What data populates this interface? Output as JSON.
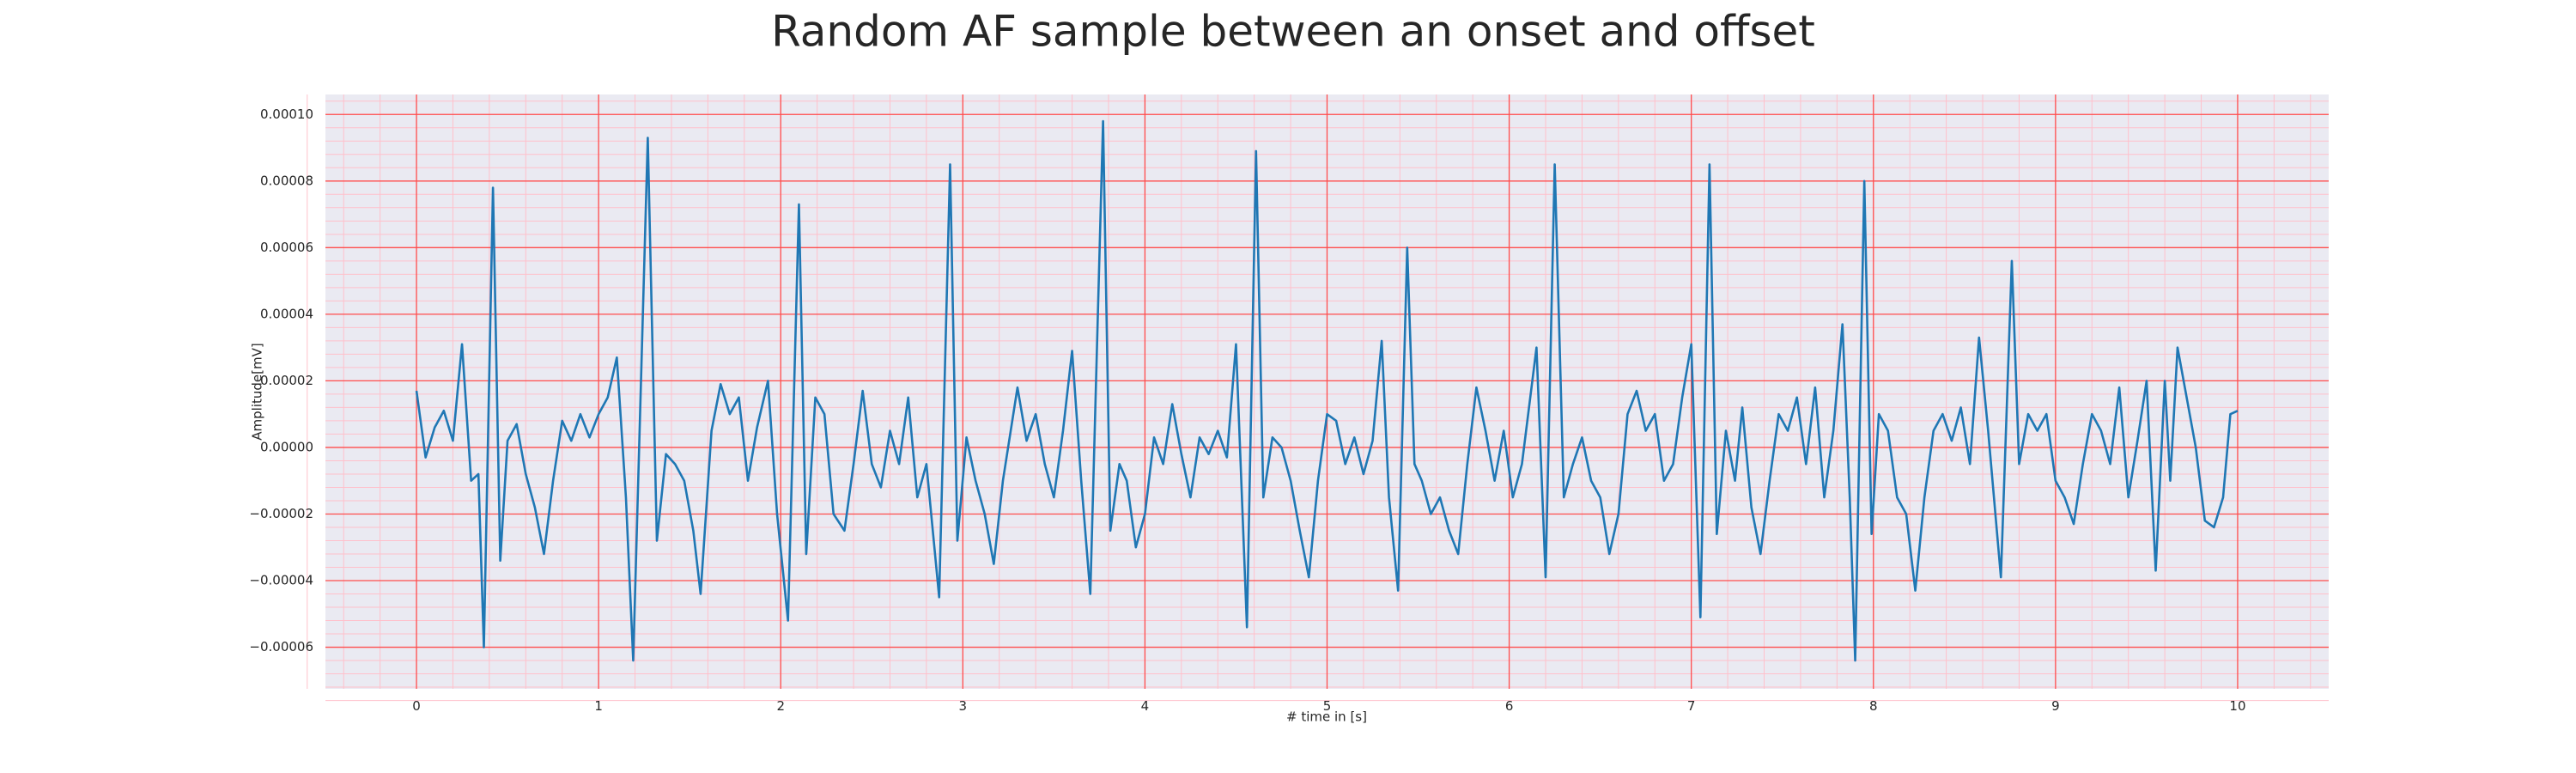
{
  "chart_data": {
    "type": "line",
    "title": "Random AF sample between an onset and offset",
    "xlabel": "# time in [s]",
    "ylabel": "Amplitude[mV]",
    "color": "#1f77b4",
    "grid": true,
    "xlim": [
      -0.5,
      10.5
    ],
    "ylim": [
      -7.25e-05,
      0.000106
    ],
    "xticks": [
      0,
      1,
      2,
      3,
      4,
      5,
      6,
      7,
      8,
      9,
      10
    ],
    "yticks": [
      {
        "value": -6e-05,
        "label": "−0.00006"
      },
      {
        "value": -4e-05,
        "label": "−0.00004"
      },
      {
        "value": -2e-05,
        "label": "−0.00002"
      },
      {
        "value": 0,
        "label": "0.00000"
      },
      {
        "value": 2e-05,
        "label": "0.00002"
      },
      {
        "value": 4e-05,
        "label": "0.00004"
      },
      {
        "value": 6e-05,
        "label": "0.00006"
      },
      {
        "value": 8e-05,
        "label": "0.00008"
      },
      {
        "value": 0.0001,
        "label": "0.00010"
      }
    ],
    "x": [
      0,
      0.05,
      0.1,
      0.15,
      0.2,
      0.25,
      0.3,
      0.34,
      0.37,
      0.42,
      0.46,
      0.5,
      0.55,
      0.6,
      0.65,
      0.7,
      0.75,
      0.8,
      0.85,
      0.9,
      0.95,
      1.0,
      1.05,
      1.1,
      1.15,
      1.19,
      1.27,
      1.32,
      1.37,
      1.42,
      1.47,
      1.52,
      1.56,
      1.62,
      1.67,
      1.72,
      1.77,
      1.82,
      1.87,
      1.93,
      1.98,
      2.04,
      2.1,
      2.14,
      2.19,
      2.24,
      2.29,
      2.35,
      2.4,
      2.45,
      2.5,
      2.55,
      2.6,
      2.65,
      2.7,
      2.75,
      2.8,
      2.87,
      2.93,
      2.97,
      3.02,
      3.07,
      3.12,
      3.17,
      3.22,
      3.3,
      3.35,
      3.4,
      3.45,
      3.5,
      3.55,
      3.6,
      3.65,
      3.7,
      3.77,
      3.81,
      3.86,
      3.9,
      3.95,
      4.0,
      4.05,
      4.1,
      4.15,
      4.2,
      4.25,
      4.3,
      4.35,
      4.4,
      4.45,
      4.5,
      4.56,
      4.61,
      4.65,
      4.7,
      4.75,
      4.8,
      4.85,
      4.9,
      4.95,
      5.0,
      5.05,
      5.1,
      5.15,
      5.2,
      5.25,
      5.3,
      5.34,
      5.39,
      5.44,
      5.48,
      5.52,
      5.57,
      5.62,
      5.67,
      5.72,
      5.77,
      5.82,
      5.87,
      5.92,
      5.97,
      6.02,
      6.07,
      6.15,
      6.2,
      6.25,
      6.3,
      6.35,
      6.4,
      6.45,
      6.5,
      6.55,
      6.6,
      6.65,
      6.7,
      6.75,
      6.8,
      6.85,
      6.9,
      6.95,
      7.0,
      7.05,
      7.1,
      7.14,
      7.19,
      7.24,
      7.28,
      7.33,
      7.38,
      7.43,
      7.48,
      7.53,
      7.58,
      7.63,
      7.68,
      7.73,
      7.78,
      7.83,
      7.87,
      7.9,
      7.95,
      7.99,
      8.03,
      8.08,
      8.13,
      8.18,
      8.23,
      8.28,
      8.33,
      8.38,
      8.43,
      8.48,
      8.53,
      8.58,
      8.63,
      8.7,
      8.76,
      8.8,
      8.85,
      8.9,
      8.95,
      9.0,
      9.05,
      9.1,
      9.15,
      9.2,
      9.25,
      9.3,
      9.35,
      9.4,
      9.45,
      9.5,
      9.55,
      9.6,
      9.63,
      9.67,
      9.72,
      9.77,
      9.82,
      9.87,
      9.92,
      9.96,
      10
    ],
    "values": [
      1.7e-05,
      -3e-06,
      6e-06,
      1.1e-05,
      2e-06,
      3.1e-05,
      -1e-05,
      -8e-06,
      -6e-05,
      7.8e-05,
      -3.4e-05,
      2e-06,
      7e-06,
      -8e-06,
      -1.8e-05,
      -3.2e-05,
      -1e-05,
      8e-06,
      2e-06,
      1e-05,
      3e-06,
      1e-05,
      1.5e-05,
      2.7e-05,
      -1.5e-05,
      -6.4e-05,
      9.3e-05,
      -2.8e-05,
      -2e-06,
      -5e-06,
      -1e-05,
      -2.5e-05,
      -4.4e-05,
      5e-06,
      1.9e-05,
      1e-05,
      1.5e-05,
      -1e-05,
      6e-06,
      2e-05,
      -2e-05,
      -5.2e-05,
      7.3e-05,
      -3.2e-05,
      1.5e-05,
      1e-05,
      -2e-05,
      -2.5e-05,
      -5e-06,
      1.7e-05,
      -5e-06,
      -1.2e-05,
      5e-06,
      -5e-06,
      1.5e-05,
      -1.5e-05,
      -5e-06,
      -4.5e-05,
      8.5e-05,
      -2.8e-05,
      3e-06,
      -1e-05,
      -2e-05,
      -3.5e-05,
      -1e-05,
      1.8e-05,
      2e-06,
      1e-05,
      -5e-06,
      -1.5e-05,
      5e-06,
      2.9e-05,
      -1e-05,
      -4.4e-05,
      9.8e-05,
      -2.5e-05,
      -5e-06,
      -1e-05,
      -3e-05,
      -2e-05,
      3e-06,
      -5e-06,
      1.3e-05,
      -2e-06,
      -1.5e-05,
      3e-06,
      -2e-06,
      5e-06,
      -3e-06,
      3.1e-05,
      -5.4e-05,
      8.9e-05,
      -1.5e-05,
      3e-06,
      0,
      -1e-05,
      -2.5e-05,
      -3.9e-05,
      -1e-05,
      1e-05,
      8e-06,
      -5e-06,
      3e-06,
      -8e-06,
      2e-06,
      3.2e-05,
      -1.5e-05,
      -4.3e-05,
      6e-05,
      -5e-06,
      -1e-05,
      -2e-05,
      -1.5e-05,
      -2.5e-05,
      -3.2e-05,
      -5e-06,
      1.8e-05,
      5e-06,
      -1e-05,
      5e-06,
      -1.5e-05,
      -5e-06,
      3e-05,
      -3.9e-05,
      8.5e-05,
      -1.5e-05,
      -5e-06,
      3e-06,
      -1e-05,
      -1.5e-05,
      -3.2e-05,
      -2e-05,
      1e-05,
      1.7e-05,
      5e-06,
      1e-05,
      -1e-05,
      -5e-06,
      1.5e-05,
      3.1e-05,
      -5.1e-05,
      8.5e-05,
      -2.6e-05,
      5e-06,
      -1e-05,
      1.2e-05,
      -1.8e-05,
      -3.2e-05,
      -1e-05,
      1e-05,
      5e-06,
      1.5e-05,
      -5e-06,
      1.8e-05,
      -1.5e-05,
      5e-06,
      3.7e-05,
      -1.5e-05,
      -6.4e-05,
      8e-05,
      -2.6e-05,
      1e-05,
      5e-06,
      -1.5e-05,
      -2e-05,
      -4.3e-05,
      -1.5e-05,
      5e-06,
      1e-05,
      2e-06,
      1.2e-05,
      -5e-06,
      3.3e-05,
      5e-06,
      -3.9e-05,
      5.6e-05,
      -5e-06,
      1e-05,
      5e-06,
      1e-05,
      -1e-05,
      -1.5e-05,
      -2.3e-05,
      -5e-06,
      1e-05,
      5e-06,
      -5e-06,
      1.8e-05,
      -1.5e-05,
      2e-06,
      2e-05,
      -3.7e-05,
      2e-05,
      -1e-05,
      3e-05,
      1.5e-05,
      0,
      -2.2e-05,
      -2.4e-05,
      -1.5e-05,
      1e-05,
      1.1e-05
    ]
  }
}
